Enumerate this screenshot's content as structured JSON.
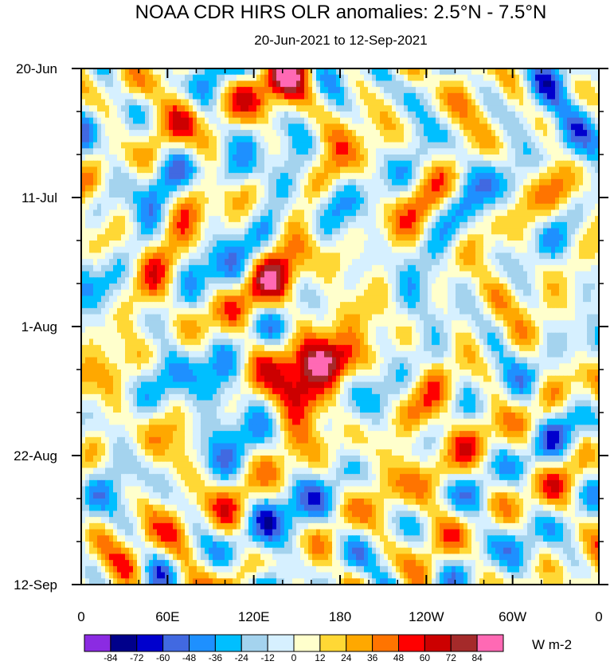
{
  "chart_data": {
    "type": "heatmap",
    "title": "NOAA CDR HIRS OLR anomalies: 2.5°N - 7.5°N",
    "subtitle": "20-Jun-2021 to 12-Sep-2021",
    "x_ticks": [
      {
        "lon": 0,
        "label": "0"
      },
      {
        "lon": 60,
        "label": "60E"
      },
      {
        "lon": 120,
        "label": "120E"
      },
      {
        "lon": 180,
        "label": "180"
      },
      {
        "lon": 240,
        "label": "120W"
      },
      {
        "lon": 300,
        "label": "60W"
      },
      {
        "lon": 360,
        "label": "0"
      }
    ],
    "x_range": [
      0,
      360
    ],
    "y_ticks": [
      {
        "day": 0,
        "label": "20-Jun"
      },
      {
        "day": 21,
        "label": "11-Jul"
      },
      {
        "day": 42,
        "label": "1-Aug"
      },
      {
        "day": 63,
        "label": "22-Aug"
      },
      {
        "day": 84,
        "label": "12-Sep"
      }
    ],
    "y_range_days": [
      0,
      84
    ],
    "y_direction": "time increases downward",
    "colorbar": {
      "units": "W m-2",
      "levels": [
        -84,
        -72,
        -60,
        -48,
        -36,
        -24,
        -12,
        0,
        12,
        24,
        36,
        48,
        60,
        72,
        84
      ],
      "colors": [
        "#8b2be2",
        "#00008b",
        "#0000cd",
        "#4169e1",
        "#1e90ff",
        "#00bfff",
        "#a4d3ee",
        "#d6f0ff",
        "#ffffcc",
        "#ffd835",
        "#ffa800",
        "#ff7400",
        "#ff0000",
        "#cc0000",
        "#a52a2a",
        "#ff69b4"
      ]
    },
    "anomaly_features": [
      {
        "lon_start": 130,
        "lon_end": 175,
        "day_start": 46,
        "day_end": 57,
        "value": 56
      },
      {
        "lon_start": 150,
        "lon_end": 195,
        "day_start": 44,
        "day_end": 51,
        "value": 58
      },
      {
        "lon_start": 110,
        "lon_end": 160,
        "day_start": 30,
        "day_end": 42,
        "value": 36
      },
      {
        "lon_start": 60,
        "lon_end": 85,
        "day_start": 0,
        "day_end": 12,
        "value": 42
      },
      {
        "lon_start": 125,
        "lon_end": 175,
        "day_start": 0,
        "day_end": 10,
        "value": 38
      },
      {
        "lon_start": 55,
        "lon_end": 80,
        "day_start": 70,
        "day_end": 84,
        "value": 40
      },
      {
        "lon_start": 80,
        "lon_end": 120,
        "day_start": 14,
        "day_end": 20,
        "value": -44
      },
      {
        "lon_start": 80,
        "lon_end": 110,
        "day_start": 48,
        "day_end": 58,
        "value": -48
      },
      {
        "lon_start": 115,
        "lon_end": 140,
        "day_start": 68,
        "day_end": 84,
        "value": -40
      },
      {
        "lon_start": 330,
        "lon_end": 360,
        "day_start": 0,
        "day_end": 14,
        "value": -46
      },
      {
        "lon_start": 215,
        "lon_end": 265,
        "day_start": 55,
        "day_end": 70,
        "value": 26
      },
      {
        "lon_start": 40,
        "lon_end": 55,
        "day_start": 50,
        "day_end": 84,
        "value": 6
      }
    ]
  }
}
